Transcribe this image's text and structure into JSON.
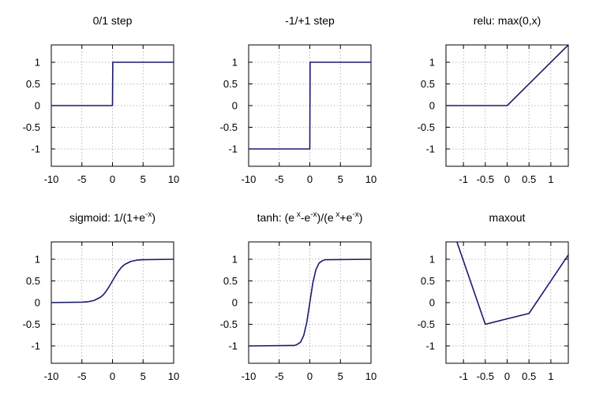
{
  "chart_data": [
    {
      "type": "line",
      "title_parts": [
        "0/1 step"
      ],
      "xlim": [
        -10,
        10
      ],
      "ylim": [
        -1.4,
        1.4
      ],
      "xticks": [
        -10,
        -5,
        0,
        5,
        10
      ],
      "xtick_labels": [
        "-10",
        "-5",
        "0",
        "5",
        "10"
      ],
      "yticks": [
        -1,
        -0.5,
        0,
        0.5,
        1
      ],
      "ytick_labels": [
        "-1",
        "-0.5",
        "0",
        "0.5",
        "1"
      ],
      "grid": true,
      "x": [
        -10,
        0,
        0.05,
        10
      ],
      "y": [
        0,
        0,
        1,
        1
      ]
    },
    {
      "type": "line",
      "title_parts": [
        "-1/+1 step"
      ],
      "xlim": [
        -10,
        10
      ],
      "ylim": [
        -1.4,
        1.4
      ],
      "xticks": [
        -10,
        -5,
        0,
        5,
        10
      ],
      "xtick_labels": [
        "-10",
        "-5",
        "0",
        "5",
        "10"
      ],
      "yticks": [
        -1,
        -0.5,
        0,
        0.5,
        1
      ],
      "ytick_labels": [
        "-1",
        "-0.5",
        "0",
        "0.5",
        "1"
      ],
      "grid": true,
      "x": [
        -10,
        0,
        0.05,
        10
      ],
      "y": [
        -1,
        -1,
        1,
        1
      ]
    },
    {
      "type": "line",
      "title_parts": [
        "relu: max(0,x)"
      ],
      "xlim": [
        -1.4,
        1.4
      ],
      "ylim": [
        -1.4,
        1.4
      ],
      "xticks": [
        -1,
        -0.5,
        0,
        0.5,
        1
      ],
      "xtick_labels": [
        "-1",
        "-0.5",
        "0",
        "0.5",
        "1"
      ],
      "yticks": [
        -1,
        -0.5,
        0,
        0.5,
        1
      ],
      "ytick_labels": [
        "-1",
        "-0.5",
        "0",
        "0.5",
        "1"
      ],
      "grid": true,
      "x": [
        -1.4,
        0,
        1.4
      ],
      "y": [
        0,
        0,
        1.4
      ]
    },
    {
      "type": "line",
      "title_parts": [
        "sigmoid: 1/(1+e",
        "-x",
        ")"
      ],
      "xlim": [
        -10,
        10
      ],
      "ylim": [
        -1.4,
        1.4
      ],
      "xticks": [
        -10,
        -5,
        0,
        5,
        10
      ],
      "xtick_labels": [
        "-10",
        "-5",
        "0",
        "5",
        "10"
      ],
      "yticks": [
        -1,
        -0.5,
        0,
        0.5,
        1
      ],
      "ytick_labels": [
        "-1",
        "-0.5",
        "0",
        "0.5",
        "1"
      ],
      "grid": true,
      "x": [
        -10,
        -5,
        -4,
        -3,
        -2,
        -1.5,
        -1,
        -0.5,
        0,
        0.5,
        1,
        1.5,
        2,
        3,
        4,
        5,
        10
      ],
      "y": [
        0,
        0.01,
        0.02,
        0.05,
        0.12,
        0.18,
        0.27,
        0.38,
        0.5,
        0.62,
        0.73,
        0.82,
        0.88,
        0.95,
        0.98,
        0.99,
        1
      ]
    },
    {
      "type": "line",
      "title_parts": [
        "tanh: (e",
        " x",
        "-e",
        "-x",
        ")/(e",
        " x",
        "+e",
        "-x",
        ")"
      ],
      "xlim": [
        -10,
        10
      ],
      "ylim": [
        -1.4,
        1.4
      ],
      "xticks": [
        -10,
        -5,
        0,
        5,
        10
      ],
      "xtick_labels": [
        "-10",
        "-5",
        "0",
        "5",
        "10"
      ],
      "yticks": [
        -1,
        -0.5,
        0,
        0.5,
        1
      ],
      "ytick_labels": [
        "-1",
        "-0.5",
        "0",
        "0.5",
        "1"
      ],
      "grid": true,
      "x": [
        -10,
        -3,
        -2.5,
        -2,
        -1.5,
        -1,
        -0.5,
        0,
        0.5,
        1,
        1.5,
        2,
        2.5,
        3,
        10
      ],
      "y": [
        -1,
        -0.99,
        -0.99,
        -0.96,
        -0.91,
        -0.76,
        -0.46,
        0,
        0.46,
        0.76,
        0.91,
        0.96,
        0.99,
        0.99,
        1
      ]
    },
    {
      "type": "line",
      "title_parts": [
        "maxout"
      ],
      "xlim": [
        -1.4,
        1.4
      ],
      "ylim": [
        -1.4,
        1.4
      ],
      "xticks": [
        -1,
        -0.5,
        0,
        0.5,
        1
      ],
      "xtick_labels": [
        "-1",
        "-0.5",
        "0",
        "0.5",
        "1"
      ],
      "yticks": [
        -1,
        -0.5,
        0,
        0.5,
        1
      ],
      "ytick_labels": [
        "-1",
        "-0.5",
        "0",
        "0.5",
        "1"
      ],
      "grid": true,
      "x": [
        -1.15,
        -0.5,
        0.5,
        1.4
      ],
      "y": [
        1.4,
        -0.5,
        -0.25,
        1.1
      ]
    }
  ]
}
